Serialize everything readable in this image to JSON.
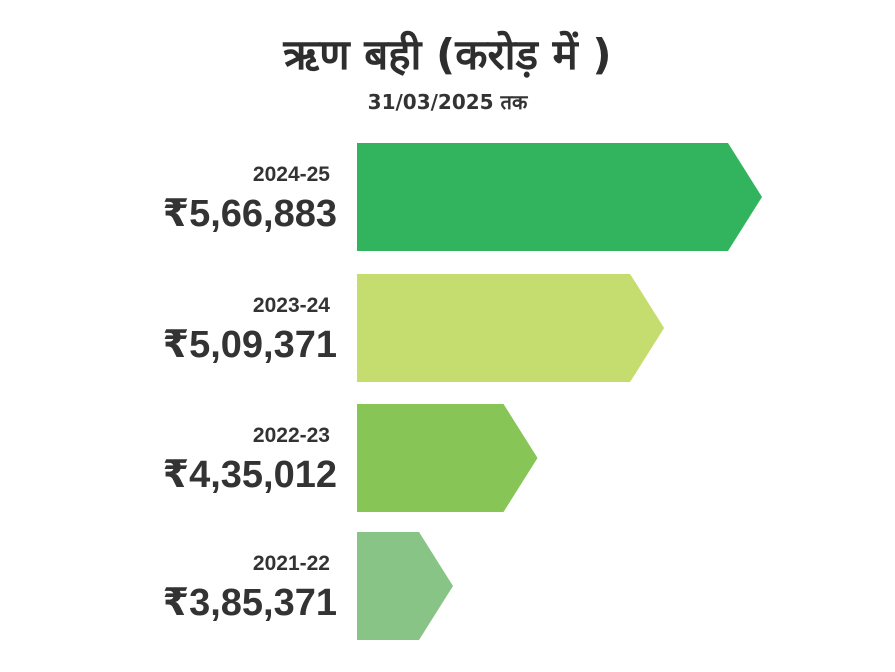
{
  "chart_data": {
    "type": "bar",
    "orientation": "horizontal",
    "title": "ऋण बही (करोड़ में )",
    "subtitle": "31/03/2025 तक",
    "categories": [
      "2024-25",
      "2023-24",
      "2022-23",
      "2021-22"
    ],
    "values": [
      566883,
      509371,
      435012,
      385371
    ],
    "value_labels": [
      "₹5,66,883",
      "₹5,09,371",
      "₹4,35,012",
      "₹3,85,371"
    ],
    "colors": [
      "#32b45f",
      "#c5dc6e",
      "#86c556",
      "#88c486"
    ],
    "grid": false,
    "legend": "none"
  }
}
